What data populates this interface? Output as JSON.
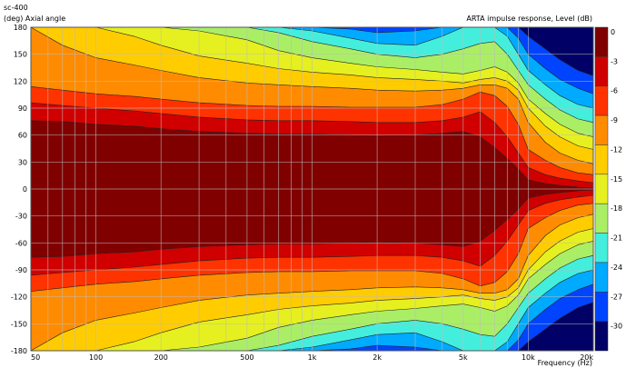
{
  "chart_data": {
    "type": "heatmap",
    "title": "sc-400",
    "ylabel": "(deg)  Axial angle",
    "xlabel": "Frequency  (Hz)",
    "colorbar_label": "ARTA impulse response, Level  (dB)",
    "x_scale": "log",
    "xlim": [
      50,
      20000
    ],
    "ylim": [
      -180,
      180
    ],
    "x_ticks": [
      50,
      100,
      200,
      500,
      1000,
      2000,
      5000,
      10000,
      20000
    ],
    "x_tick_labels": [
      "50",
      "100",
      "200",
      "500",
      "1k",
      "2k",
      "5k",
      "10k",
      "20k"
    ],
    "y_ticks": [
      180,
      150,
      120,
      90,
      60,
      30,
      0,
      -30,
      -60,
      -90,
      -120,
      -150,
      -180
    ],
    "y_tick_labels": [
      "180",
      "150",
      "120",
      "90",
      "60",
      "30",
      "0",
      "-30",
      "-60",
      "-90",
      "-120",
      "-150",
      "-180"
    ],
    "levels_db": [
      0,
      -3,
      -6,
      -9,
      -12,
      -15,
      -18,
      -21,
      -24,
      -27,
      -30
    ],
    "level_labels": [
      "0",
      "-3",
      "-6",
      "-9",
      "-12",
      "-15",
      "-18",
      "-21",
      "-24",
      "-27",
      "-30"
    ],
    "level_colors": [
      "#800000",
      "#d00000",
      "#ff3300",
      "#ff8c00",
      "#ffcc00",
      "#e6f020",
      "#aaee66",
      "#44eedd",
      "#00aaff",
      "#0044ff",
      "#000066"
    ],
    "grid": true
  }
}
